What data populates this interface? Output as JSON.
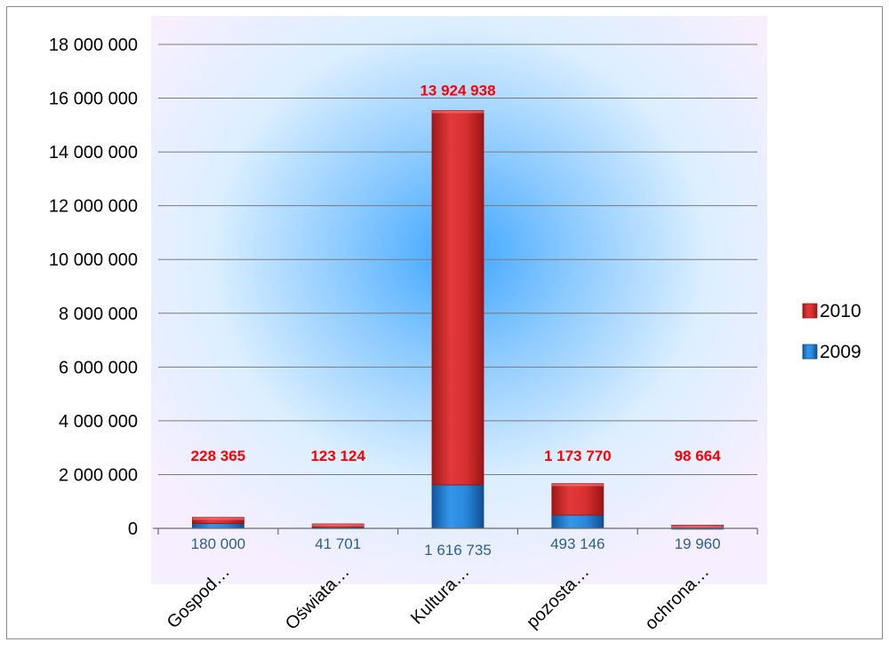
{
  "chart_data": {
    "type": "bar",
    "stacked": true,
    "categories": [
      "Gospod…",
      "Oświata…",
      "Kultura…",
      "pozosta…",
      "ochrona…"
    ],
    "series": [
      {
        "name": "2009",
        "values": [
          180000,
          41701,
          1616735,
          493146,
          19960
        ],
        "value_labels": [
          "180 000",
          "41 701",
          "1 616 735",
          "493 146",
          "19 960"
        ],
        "color": "#1f7fd6"
      },
      {
        "name": "2010",
        "values": [
          228365,
          123124,
          13924938,
          1173770,
          98664
        ],
        "value_labels": [
          "228 365",
          "123 124",
          "13 924 938",
          "1 173 770",
          "98 664"
        ],
        "color": "#d42a2a"
      }
    ],
    "ylim": [
      0,
      18000000
    ],
    "yticks": [
      0,
      2000000,
      4000000,
      6000000,
      8000000,
      10000000,
      12000000,
      14000000,
      16000000,
      18000000
    ],
    "ytick_labels": [
      "0",
      "2 000 000",
      "4 000 000",
      "6 000 000",
      "8 000 000",
      "10 000 000",
      "12 000 000",
      "14 000 000",
      "16 000 000",
      "18 000 000"
    ],
    "grid": true,
    "legend_position": "right",
    "label_colors": {
      "series_2009": "#2b5f8f",
      "series_2010": "#ff0000"
    }
  }
}
